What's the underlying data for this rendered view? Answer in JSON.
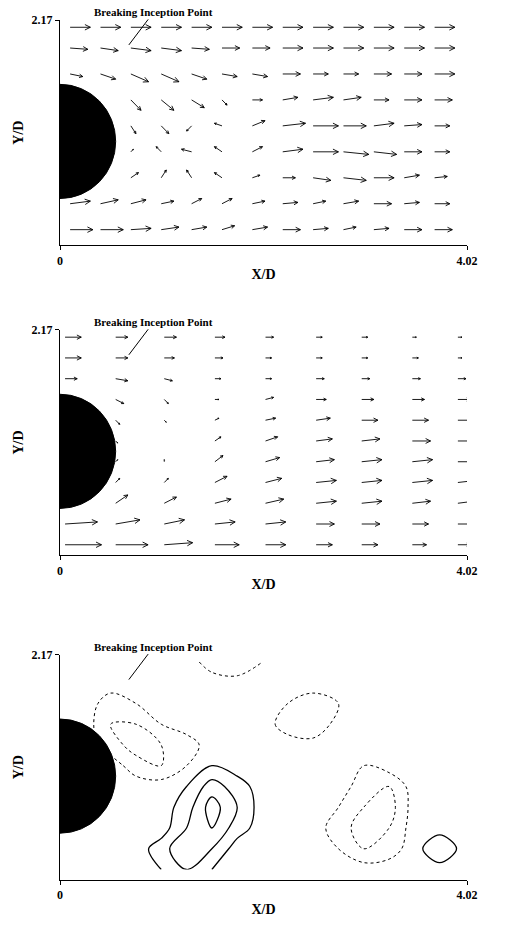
{
  "chart_data": [
    {
      "type": "vector_field",
      "x_label": "X/D",
      "y_label": "Y/D",
      "xlim": [
        0,
        4.02
      ],
      "ylim": [
        0,
        2.17
      ],
      "xticks": [
        0,
        4.02
      ],
      "yticks": [
        2.17
      ],
      "grid": false,
      "annotation": {
        "text": "Breaking Inception Point",
        "x": 0.68,
        "y": 1.93
      },
      "cylinder": {
        "x": 0,
        "y": 1.0,
        "radius": 0.55
      },
      "vectors": {
        "x": [
          0.1,
          0.4,
          0.7,
          1.0,
          1.3,
          1.6,
          1.9,
          2.2,
          2.5,
          2.8,
          3.1,
          3.4,
          3.7
        ],
        "y": [
          0.15,
          0.4,
          0.65,
          0.9,
          1.15,
          1.4,
          1.65,
          1.9,
          2.1
        ],
        "u": [
          [
            0.9,
            0.9,
            0.8,
            0.7,
            0.6,
            0.5,
            0.6,
            0.7,
            0.6,
            0.5,
            0.6,
            0.7,
            0.7
          ],
          [
            0.8,
            0.7,
            0.6,
            0.5,
            0.4,
            0.4,
            0.5,
            0.6,
            0.5,
            0.6,
            0.7,
            0.6,
            0.6
          ],
          [
            null,
            null,
            0.3,
            0.2,
            -0.2,
            -0.3,
            0.3,
            0.5,
            0.7,
            0.9,
            0.8,
            0.6,
            0.5
          ],
          [
            null,
            null,
            0.1,
            -0.2,
            -0.4,
            -0.3,
            0.4,
            0.8,
            1.0,
            1.0,
            0.9,
            0.7,
            0.6
          ],
          [
            null,
            null,
            0.2,
            0.3,
            -0.2,
            -0.3,
            0.5,
            0.9,
            1.0,
            0.9,
            0.8,
            0.7,
            0.6
          ],
          [
            null,
            null,
            0.4,
            0.5,
            0.5,
            0.2,
            0.4,
            0.6,
            0.8,
            0.7,
            0.6,
            0.7,
            0.7
          ],
          [
            0.5,
            0.6,
            0.7,
            0.7,
            0.6,
            0.6,
            0.6,
            0.7,
            0.6,
            0.6,
            0.7,
            0.7,
            0.8
          ],
          [
            0.7,
            0.7,
            0.8,
            0.8,
            0.7,
            0.7,
            0.7,
            0.8,
            0.8,
            0.8,
            0.8,
            0.8,
            0.8
          ],
          [
            0.8,
            0.8,
            0.8,
            0.8,
            0.8,
            0.8,
            0.8,
            0.8,
            0.8,
            0.8,
            0.8,
            0.8,
            0.8
          ]
        ],
        "v": [
          [
            0,
            0,
            0.05,
            0.1,
            0.1,
            0.15,
            0.1,
            0,
            0.05,
            0.1,
            0.05,
            0,
            0
          ],
          [
            0.1,
            0.15,
            0.15,
            0.1,
            0.2,
            0.2,
            0.1,
            0.05,
            0.1,
            0.1,
            0,
            0.05,
            0
          ],
          [
            null,
            null,
            0.2,
            0.3,
            0.3,
            0.2,
            0.1,
            0,
            -0.1,
            -0.1,
            0,
            0.1,
            0.05
          ],
          [
            null,
            null,
            0.1,
            0.2,
            0.1,
            0.2,
            0.2,
            0.1,
            0,
            -0.1,
            -0.1,
            0,
            0
          ],
          [
            null,
            null,
            -0.3,
            -0.3,
            -0.2,
            0.1,
            0.2,
            0.1,
            0,
            0,
            0.1,
            0.05,
            0
          ],
          [
            null,
            null,
            -0.4,
            -0.4,
            -0.3,
            -0.2,
            0,
            0.1,
            0.1,
            0.1,
            0,
            0,
            0
          ],
          [
            -0.1,
            -0.2,
            -0.3,
            -0.3,
            -0.2,
            -0.1,
            -0.1,
            0,
            0,
            0,
            0,
            0,
            0
          ],
          [
            -0.05,
            -0.1,
            -0.1,
            -0.1,
            -0.05,
            0,
            0,
            0,
            0,
            0,
            0,
            0,
            0
          ],
          [
            0,
            0,
            0,
            0,
            0,
            0,
            0,
            0,
            0,
            0,
            0,
            0,
            0
          ]
        ]
      }
    },
    {
      "type": "vector_profiles",
      "x_label": "X/D",
      "y_label": "Y/D",
      "xlim": [
        0,
        4.02
      ],
      "ylim": [
        0,
        2.17
      ],
      "xticks": [
        0,
        4.02
      ],
      "yticks": [
        2.17
      ],
      "grid": false,
      "annotation": {
        "text": "Breaking Inception Point",
        "x": 0.68,
        "y": 1.93
      },
      "cylinder": {
        "x": 0,
        "y": 1.0,
        "radius": 0.55
      },
      "y": [
        0.1,
        0.3,
        0.5,
        0.7,
        0.9,
        1.1,
        1.3,
        1.5,
        1.7,
        1.9,
        2.1
      ],
      "stations": [
        {
          "x": 0.05,
          "u": [
            0.9,
            0.8,
            null,
            null,
            null,
            null,
            null,
            null,
            0.3,
            0.4,
            0.4
          ],
          "v": [
            0,
            0.05,
            null,
            null,
            null,
            null,
            null,
            null,
            0,
            0,
            0
          ]
        },
        {
          "x": 0.55,
          "u": [
            0.8,
            0.6,
            0.3,
            0.1,
            0.05,
            0.05,
            0.1,
            0.2,
            0.3,
            0.3,
            0.3
          ],
          "v": [
            0,
            0.1,
            0.2,
            0.1,
            0.05,
            -0.05,
            -0.1,
            -0.1,
            -0.05,
            0,
            0
          ]
        },
        {
          "x": 1.03,
          "u": [
            0.7,
            0.5,
            0.3,
            0.1,
            0,
            0,
            0.05,
            0.1,
            0.2,
            0.25,
            0.3
          ],
          "v": [
            0.05,
            0.1,
            0.15,
            0.1,
            0.05,
            0,
            -0.05,
            -0.1,
            -0.05,
            0,
            0
          ]
        },
        {
          "x": 1.53,
          "u": [
            0.6,
            0.5,
            0.4,
            0.3,
            0.2,
            0.15,
            0.1,
            0.1,
            0.15,
            0.2,
            0.25
          ],
          "v": [
            0,
            0.05,
            0.1,
            0.15,
            0.15,
            0.1,
            0.05,
            0,
            0,
            0,
            0
          ]
        },
        {
          "x": 2.03,
          "u": [
            0.5,
            0.5,
            0.45,
            0.4,
            0.35,
            0.3,
            0.25,
            0.2,
            0.15,
            0.15,
            0.2
          ],
          "v": [
            0,
            0.05,
            0.1,
            0.1,
            0.1,
            0.1,
            0.05,
            0.05,
            0,
            0,
            0
          ]
        },
        {
          "x": 2.53,
          "u": [
            0.4,
            0.45,
            0.5,
            0.5,
            0.45,
            0.4,
            0.35,
            0.25,
            0.2,
            0.15,
            0.15
          ],
          "v": [
            0,
            0,
            0.05,
            0.05,
            0.05,
            0.05,
            0.05,
            0,
            0,
            0,
            0
          ]
        },
        {
          "x": 2.98,
          "u": [
            0.4,
            0.45,
            0.5,
            0.5,
            0.5,
            0.45,
            0.4,
            0.3,
            0.2,
            0.15,
            0.15
          ],
          "v": [
            0,
            0,
            0.05,
            0.05,
            0.05,
            0.05,
            0,
            0,
            0,
            0,
            0
          ]
        },
        {
          "x": 3.48,
          "u": [
            0.35,
            0.4,
            0.45,
            0.5,
            0.5,
            0.45,
            0.4,
            0.3,
            0.2,
            0.15,
            0.1
          ],
          "v": [
            0,
            0,
            0.05,
            0.05,
            0.05,
            0,
            0,
            0,
            0,
            0,
            0
          ]
        },
        {
          "x": 3.93,
          "u": [
            0.3,
            0.35,
            0.4,
            0.45,
            0.45,
            0.45,
            0.4,
            0.3,
            0.2,
            0.1,
            0.1
          ],
          "v": [
            0,
            0,
            0.05,
            0.05,
            0,
            0,
            0,
            0,
            0,
            0,
            0
          ]
        }
      ]
    },
    {
      "type": "contour",
      "x_label": "X/D",
      "y_label": "Y/D",
      "xlim": [
        0,
        4.02
      ],
      "ylim": [
        0,
        2.17
      ],
      "xticks": [
        0,
        4.02
      ],
      "yticks": [
        2.17
      ],
      "grid": false,
      "annotation": {
        "text": "Breaking Inception Point",
        "x": 0.68,
        "y": 1.93
      },
      "cylinder": {
        "x": 0,
        "y": 1.0,
        "radius": 0.55
      },
      "levels": [
        -2.5,
        -1.5,
        -0.5,
        0.5,
        1.5,
        2.5
      ],
      "vorticity": {
        "x": [
          0,
          0.25,
          0.5,
          0.75,
          1.0,
          1.25,
          1.5,
          1.75,
          2.0,
          2.25,
          2.5,
          2.75,
          3.0,
          3.25,
          3.5,
          3.75,
          4.0
        ],
        "y": [
          0.1,
          0.3,
          0.5,
          0.7,
          0.9,
          1.1,
          1.3,
          1.5,
          1.7,
          1.9,
          2.1
        ],
        "z": [
          [
            0,
            0,
            0,
            0,
            0.5,
            1.5,
            0.5,
            0,
            0,
            0,
            0,
            0,
            0,
            0,
            0,
            0,
            0
          ],
          [
            0,
            0,
            0,
            0,
            1,
            2.5,
            1.5,
            0,
            0,
            0,
            0,
            -0.5,
            -1.5,
            -1,
            0,
            1.5,
            0
          ],
          [
            0,
            0,
            0,
            0,
            0,
            1.5,
            2.5,
            1,
            0,
            0,
            0,
            -1,
            -2,
            -1.5,
            0,
            0,
            0
          ],
          [
            0,
            0,
            0,
            0,
            0,
            1,
            3,
            1.5,
            0,
            0,
            0,
            -0.5,
            -1.5,
            -2,
            0,
            0,
            0
          ],
          [
            0,
            0,
            0,
            0,
            0,
            0.5,
            2,
            1,
            0,
            0,
            0,
            0,
            -1,
            -1.5,
            0,
            0,
            0
          ],
          [
            0,
            0,
            0,
            -1,
            -1.5,
            -0.5,
            0.5,
            0,
            0,
            0,
            0,
            0,
            -0.5,
            0,
            0,
            0,
            0
          ],
          [
            0,
            0,
            -1,
            -2,
            -1.5,
            -1,
            0,
            0,
            0,
            0,
            0,
            0,
            0,
            0,
            0,
            0,
            0
          ],
          [
            0,
            0,
            -1.5,
            -1.5,
            -0.5,
            0,
            0,
            0,
            0,
            -1,
            -1.5,
            0,
            0,
            0,
            0,
            0,
            0
          ],
          [
            0,
            0,
            -1,
            -0.5,
            0,
            0,
            0,
            0,
            0,
            -0.5,
            -1,
            -0.5,
            0,
            0,
            0,
            0,
            0
          ],
          [
            0,
            0,
            0,
            0,
            0,
            0,
            0,
            0,
            0,
            0,
            0,
            0,
            0,
            0,
            0,
            0,
            0
          ],
          [
            0,
            0,
            0,
            0,
            0,
            0,
            -1,
            -1.5,
            -0.5,
            0,
            0,
            -0.5,
            0,
            0,
            0,
            0,
            0
          ]
        ]
      }
    }
  ]
}
